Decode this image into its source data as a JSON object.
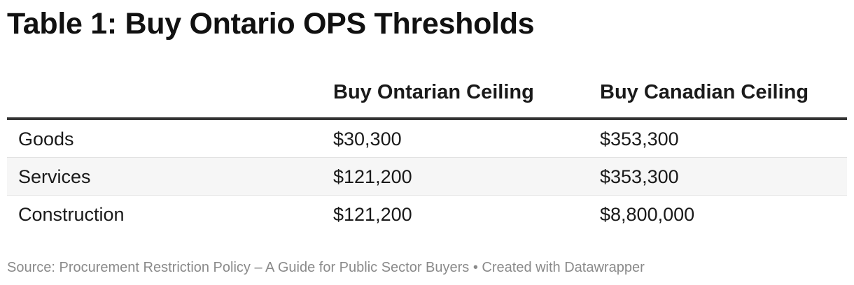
{
  "title": "Table 1: Buy Ontario OPS Thresholds",
  "table": {
    "headers": [
      "",
      "Buy Ontarian Ceiling",
      "Buy Canadian Ceiling"
    ],
    "rows": [
      [
        "Goods",
        "$30,300",
        "$353,300"
      ],
      [
        "Services",
        "$121,200",
        "$353,300"
      ],
      [
        "Construction",
        "$121,200",
        "$8,800,000"
      ]
    ]
  },
  "footer": "Source: Procurement Restriction Policy – A Guide for Public Sector Buyers • Created with Datawrapper"
}
